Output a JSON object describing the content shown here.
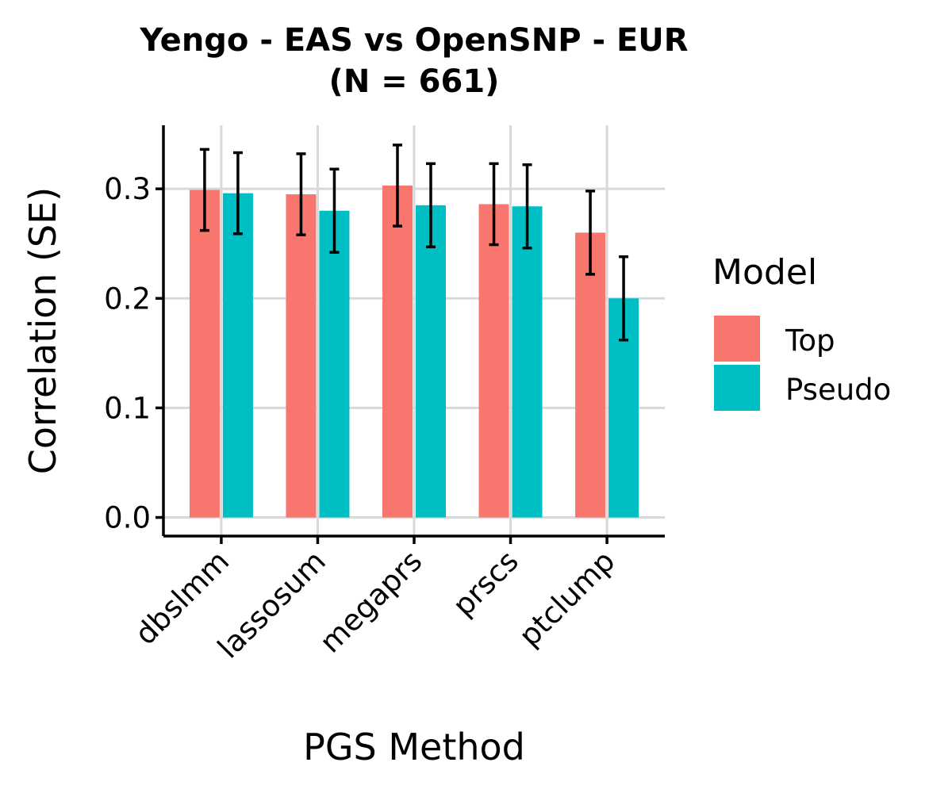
{
  "chart_data": {
    "type": "bar",
    "title": "Yengo - EAS vs OpenSNP - EUR\n(N = 661)",
    "xlabel": "PGS Method",
    "ylabel": "Correlation (SE)",
    "categories": [
      "dbslmm",
      "lassosum",
      "megaprs",
      "prscs",
      "ptclump"
    ],
    "series": [
      {
        "name": "Top",
        "color": "#F8766D",
        "values": [
          0.299,
          0.295,
          0.303,
          0.286,
          0.26
        ],
        "se": [
          0.037,
          0.037,
          0.037,
          0.037,
          0.038
        ]
      },
      {
        "name": "Pseudo",
        "color": "#00BFC4",
        "values": [
          0.296,
          0.28,
          0.285,
          0.284,
          0.2
        ],
        "se": [
          0.037,
          0.038,
          0.038,
          0.038,
          0.038
        ]
      }
    ],
    "ylim": [
      -0.017,
      0.358
    ],
    "yticks": [
      "0.0",
      "0.1",
      "0.2",
      "0.3"
    ],
    "ytick_values": [
      0.0,
      0.1,
      0.2,
      0.3
    ],
    "grid": true,
    "legend": {
      "title": "Model",
      "placement": "right"
    }
  }
}
